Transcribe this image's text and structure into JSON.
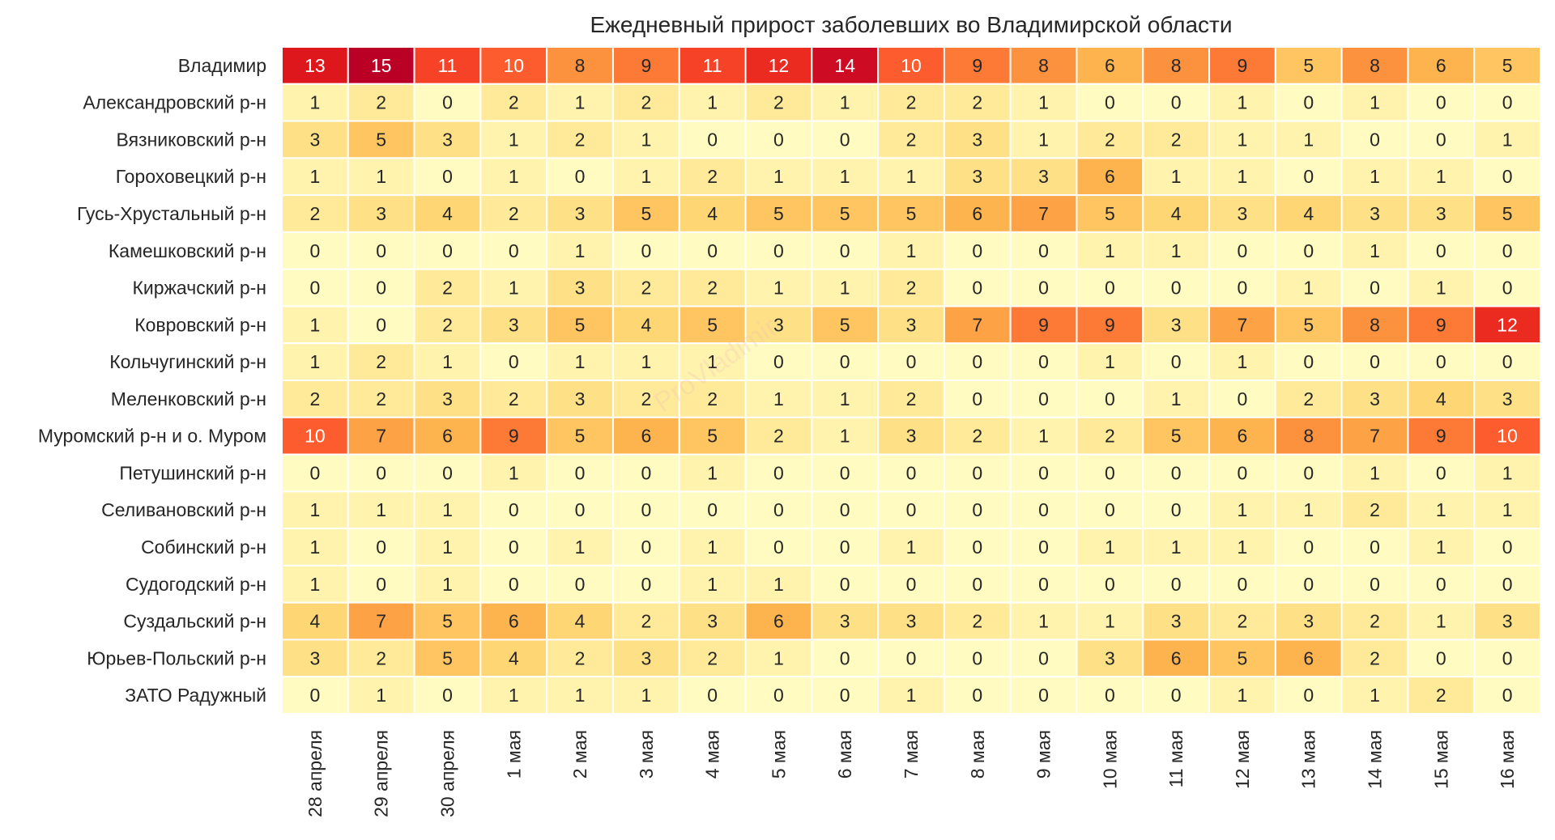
{
  "chart_data": {
    "type": "heatmap",
    "title": "Ежедневный прирост заболевших во Владимирской области",
    "xlabel": "",
    "ylabel": "",
    "watermark": "ProVladimir",
    "colormap": "YlOrRd",
    "value_range": [
      0,
      15
    ],
    "rows": [
      "Владимир",
      "Александровский р-н",
      "Вязниковский р-н",
      "Гороховецкий р-н",
      "Гусь-Хрустальный р-н",
      "Камешковский р-н",
      "Киржачский р-н",
      "Ковровский р-н",
      "Кольчугинский р-н",
      "Меленковский р-н",
      "Муромский р-н и о. Муром",
      "Петушинский р-н",
      "Селивановский р-н",
      "Собинский р-н",
      "Судогодский р-н",
      "Суздальский р-н",
      "Юрьев-Польский р-н",
      "ЗАТО Радужный"
    ],
    "columns": [
      "28 апреля",
      "29 апреля",
      "30 апреля",
      "1 мая",
      "2 мая",
      "3 мая",
      "4 мая",
      "5 мая",
      "6 мая",
      "7 мая",
      "8 мая",
      "9 мая",
      "10 мая",
      "11 мая",
      "12 мая",
      "13 мая",
      "14 мая",
      "15 мая",
      "16 мая"
    ],
    "values": [
      [
        13,
        15,
        11,
        10,
        8,
        9,
        11,
        12,
        14,
        10,
        9,
        8,
        6,
        8,
        9,
        5,
        8,
        6,
        5
      ],
      [
        1,
        2,
        0,
        2,
        1,
        2,
        1,
        2,
        1,
        2,
        2,
        1,
        0,
        0,
        1,
        0,
        1,
        0,
        0
      ],
      [
        3,
        5,
        3,
        1,
        2,
        1,
        0,
        0,
        0,
        2,
        3,
        1,
        2,
        2,
        1,
        1,
        0,
        0,
        1
      ],
      [
        1,
        1,
        0,
        1,
        0,
        1,
        2,
        1,
        1,
        1,
        3,
        3,
        6,
        1,
        1,
        0,
        1,
        1,
        0
      ],
      [
        2,
        3,
        4,
        2,
        3,
        5,
        4,
        5,
        5,
        5,
        6,
        7,
        5,
        4,
        3,
        4,
        3,
        3,
        5
      ],
      [
        0,
        0,
        0,
        0,
        1,
        0,
        0,
        0,
        0,
        1,
        0,
        0,
        1,
        1,
        0,
        0,
        1,
        0,
        0
      ],
      [
        0,
        0,
        2,
        1,
        3,
        2,
        2,
        1,
        1,
        2,
        0,
        0,
        0,
        0,
        0,
        1,
        0,
        1,
        0
      ],
      [
        1,
        0,
        2,
        3,
        5,
        4,
        5,
        3,
        5,
        3,
        7,
        9,
        9,
        3,
        7,
        5,
        8,
        9,
        12
      ],
      [
        1,
        2,
        1,
        0,
        1,
        1,
        1,
        0,
        0,
        0,
        0,
        0,
        1,
        0,
        1,
        0,
        0,
        0,
        0
      ],
      [
        2,
        2,
        3,
        2,
        3,
        2,
        2,
        1,
        1,
        2,
        0,
        0,
        0,
        1,
        0,
        2,
        3,
        4,
        3
      ],
      [
        10,
        7,
        6,
        9,
        5,
        6,
        5,
        2,
        1,
        3,
        2,
        1,
        2,
        5,
        6,
        8,
        7,
        9,
        10
      ],
      [
        0,
        0,
        0,
        1,
        0,
        0,
        1,
        0,
        0,
        0,
        0,
        0,
        0,
        0,
        0,
        0,
        1,
        0,
        1
      ],
      [
        1,
        1,
        1,
        0,
        0,
        0,
        0,
        0,
        0,
        0,
        0,
        0,
        0,
        0,
        1,
        1,
        2,
        1,
        1
      ],
      [
        1,
        0,
        1,
        0,
        1,
        0,
        1,
        0,
        0,
        1,
        0,
        0,
        1,
        1,
        1,
        0,
        0,
        1,
        0
      ],
      [
        1,
        0,
        1,
        0,
        0,
        0,
        1,
        1,
        0,
        0,
        0,
        0,
        0,
        0,
        0,
        0,
        0,
        0,
        0
      ],
      [
        4,
        7,
        5,
        6,
        4,
        2,
        3,
        6,
        3,
        3,
        2,
        1,
        1,
        3,
        2,
        3,
        2,
        1,
        3
      ],
      [
        3,
        2,
        5,
        4,
        2,
        3,
        2,
        1,
        0,
        0,
        0,
        0,
        3,
        6,
        5,
        6,
        2,
        0,
        0
      ],
      [
        0,
        1,
        0,
        1,
        1,
        1,
        0,
        0,
        0,
        1,
        0,
        0,
        0,
        0,
        1,
        0,
        1,
        2,
        0
      ]
    ]
  }
}
